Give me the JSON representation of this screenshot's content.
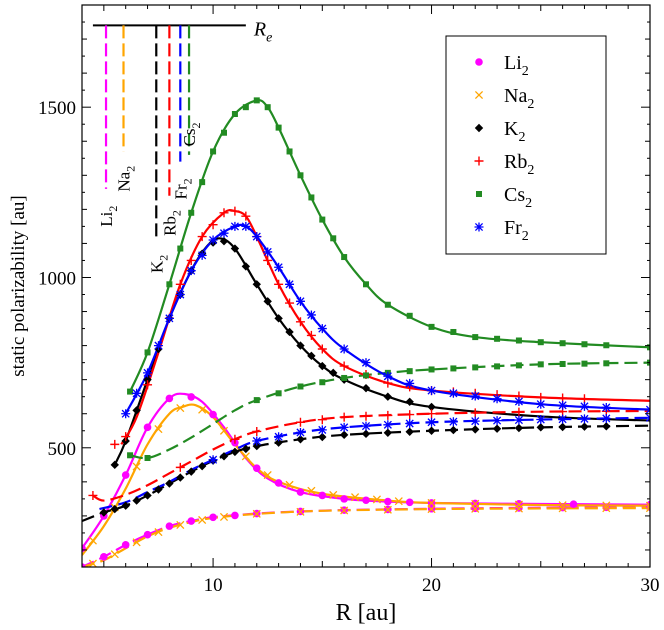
{
  "chart_data": {
    "type": "line",
    "xlabel": "R [au]",
    "ylabel": "static polarizability [au]",
    "xlim": [
      4,
      30
    ],
    "ylim": [
      150,
      1800
    ],
    "xticks": [
      10,
      20,
      30
    ],
    "yticks": [
      500,
      1000,
      1500
    ],
    "re_line": {
      "y": 1740,
      "x_start": 4.5,
      "x_end": 11.5,
      "label_main": "R",
      "label_sub": "e"
    },
    "series": [
      {
        "name": "Li2",
        "label_main": "Li",
        "label_sub": "2",
        "color": "#ff00ff",
        "marker": "circle",
        "re": 5.1,
        "re_bottom": 1260,
        "annot": {
          "x": 5.1,
          "y": 1180,
          "main": "Li",
          "sub": "2"
        },
        "parallel": [
          [
            4,
            205
          ],
          [
            5,
            300
          ],
          [
            6,
            420
          ],
          [
            7,
            560
          ],
          [
            8,
            645
          ],
          [
            8.7,
            658
          ],
          [
            9.5,
            635
          ],
          [
            10.5,
            560
          ],
          [
            11.5,
            470
          ],
          [
            12.5,
            410
          ],
          [
            14,
            370
          ],
          [
            16,
            350
          ],
          [
            18,
            342
          ],
          [
            20,
            338
          ],
          [
            25,
            335
          ],
          [
            30,
            333
          ]
        ],
        "perpendicular": [
          [
            4,
            150
          ],
          [
            5,
            180
          ],
          [
            6,
            215
          ],
          [
            7,
            245
          ],
          [
            8,
            270
          ],
          [
            9,
            285
          ],
          [
            10,
            296
          ],
          [
            12,
            307
          ],
          [
            14,
            313
          ],
          [
            16,
            317
          ],
          [
            20,
            321
          ],
          [
            25,
            324
          ],
          [
            30,
            326
          ]
        ],
        "markers_parallel": [
          4,
          5,
          6,
          7,
          8,
          9,
          10,
          11,
          12,
          13,
          14,
          15,
          16,
          17,
          18,
          19,
          20,
          22,
          24,
          26.5,
          30
        ],
        "markers_perpendicular": [
          4,
          5,
          6,
          7,
          8,
          9,
          10,
          11,
          12,
          14,
          16,
          18,
          20,
          22,
          24,
          26,
          28,
          30
        ]
      },
      {
        "name": "Na2",
        "label_main": "Na",
        "label_sub": "2",
        "color": "#ffa500",
        "marker": "x",
        "re": 5.9,
        "re_bottom": 1370,
        "annot": {
          "x": 5.9,
          "y": 1290,
          "main": "Na",
          "sub": "2"
        },
        "parallel": [
          [
            4,
            185
          ],
          [
            5,
            270
          ],
          [
            6,
            380
          ],
          [
            7,
            510
          ],
          [
            8,
            600
          ],
          [
            8.6,
            620
          ],
          [
            9.2,
            625
          ],
          [
            10,
            590
          ],
          [
            11,
            510
          ],
          [
            12,
            440
          ],
          [
            13,
            400
          ],
          [
            15,
            365
          ],
          [
            18,
            345
          ],
          [
            20,
            338
          ],
          [
            25,
            332
          ],
          [
            30,
            330
          ]
        ],
        "perpendicular": [
          [
            4,
            150
          ],
          [
            5,
            170
          ],
          [
            6,
            205
          ],
          [
            7,
            240
          ],
          [
            8,
            265
          ],
          [
            9,
            282
          ],
          [
            10,
            294
          ],
          [
            12,
            306
          ],
          [
            15,
            315
          ],
          [
            20,
            320
          ],
          [
            25,
            322
          ],
          [
            30,
            323
          ]
        ],
        "markers_parallel": [
          4.5,
          5.5,
          6.5,
          7.5,
          8.5,
          9.5,
          10.5,
          11.5,
          12.5,
          13.5,
          14.5,
          15.5,
          16.5,
          17.5,
          18.5,
          20,
          22,
          24,
          26,
          28,
          30
        ],
        "markers_perpendicular": [
          4.5,
          5.5,
          6.5,
          7.5,
          8.5,
          9.5,
          10.5,
          12,
          14,
          16,
          18,
          20,
          22,
          24,
          26,
          28,
          30
        ]
      },
      {
        "name": "K2",
        "label_main": "K",
        "label_sub": "2",
        "color": "#000000",
        "marker": "diamond",
        "re": 7.4,
        "re_bottom": 1120,
        "annot": {
          "x": 7.4,
          "y": 1040,
          "main": "K",
          "sub": "2"
        },
        "parallel": [
          [
            5.5,
            450
          ],
          [
            6,
            520
          ],
          [
            7,
            700
          ],
          [
            8,
            880
          ],
          [
            9,
            1020
          ],
          [
            9.7,
            1090
          ],
          [
            10.3,
            1115
          ],
          [
            11,
            1085
          ],
          [
            12,
            980
          ],
          [
            13,
            880
          ],
          [
            14,
            800
          ],
          [
            15,
            740
          ],
          [
            16,
            700
          ],
          [
            18,
            650
          ],
          [
            20,
            620
          ],
          [
            25,
            592
          ],
          [
            30,
            580
          ]
        ],
        "perpendicular": [
          [
            4,
            285
          ],
          [
            5,
            310
          ],
          [
            6,
            330
          ],
          [
            7,
            360
          ],
          [
            8,
            395
          ],
          [
            9,
            430
          ],
          [
            10,
            462
          ],
          [
            11,
            488
          ],
          [
            12,
            505
          ],
          [
            14,
            525
          ],
          [
            16,
            538
          ],
          [
            20,
            550
          ],
          [
            25,
            560
          ],
          [
            30,
            565
          ]
        ],
        "markers_parallel": [
          5.5,
          6,
          6.5,
          7,
          7.5,
          8,
          8.5,
          9,
          9.5,
          10,
          10.5,
          11,
          11.5,
          12,
          12.5,
          13,
          13.5,
          14,
          14.5,
          15,
          15.5,
          16,
          17,
          18,
          19,
          20
        ],
        "markers_perpendicular": [
          5,
          5.5,
          6,
          6.5,
          7,
          7.5,
          8,
          8.5,
          9,
          9.5,
          10,
          10.5,
          11,
          11.5,
          12,
          13,
          14,
          15,
          16,
          17,
          18,
          19,
          20,
          21,
          22,
          23,
          24,
          25,
          26,
          27,
          28
        ]
      },
      {
        "name": "Rb2",
        "label_main": "Rb",
        "label_sub": "2",
        "color": "#ff0000",
        "marker": "plus",
        "re": 8.0,
        "re_bottom": 1240,
        "annot": {
          "x": 8.0,
          "y": 1160,
          "main": "Rb",
          "sub": "2"
        },
        "parallel": [
          [
            5.8,
            510
          ],
          [
            6.5,
            590
          ],
          [
            7.5,
            780
          ],
          [
            8.5,
            980
          ],
          [
            9.5,
            1120
          ],
          [
            10.5,
            1190
          ],
          [
            11,
            1195
          ],
          [
            11.5,
            1180
          ],
          [
            12,
            1120
          ],
          [
            13,
            980
          ],
          [
            14,
            870
          ],
          [
            15,
            790
          ],
          [
            16,
            740
          ],
          [
            18,
            690
          ],
          [
            20,
            668
          ],
          [
            25,
            648
          ],
          [
            30,
            638
          ]
        ],
        "perpendicular": [
          [
            4.5,
            360
          ],
          [
            5,
            345
          ],
          [
            6,
            362
          ],
          [
            7,
            390
          ],
          [
            8,
            425
          ],
          [
            9,
            460
          ],
          [
            10,
            495
          ],
          [
            11,
            525
          ],
          [
            12,
            548
          ],
          [
            14,
            575
          ],
          [
            16,
            590
          ],
          [
            20,
            600
          ],
          [
            25,
            606
          ],
          [
            30,
            608
          ]
        ],
        "markers_parallel": [
          5.5,
          6,
          7,
          8,
          8.5,
          9,
          9.5,
          10,
          10.5,
          11,
          11.5,
          12,
          12.5,
          13,
          13.5,
          14,
          14.5,
          15,
          16,
          17,
          18,
          19,
          20,
          21,
          22,
          23,
          24,
          25,
          26,
          27
        ],
        "markers_perpendicular": [
          4.5,
          8.5,
          11,
          12,
          14,
          15,
          16,
          17,
          18,
          19,
          20,
          22,
          24,
          26,
          28
        ]
      },
      {
        "name": "Cs2",
        "label_main": "Cs",
        "label_sub": "2",
        "color": "#228b22",
        "marker": "square",
        "re": 8.9,
        "re_bottom": 1360,
        "annot": {
          "x": 8.9,
          "y": 1420,
          "main": "Cs",
          "sub": "2"
        },
        "parallel": [
          [
            6.2,
            665
          ],
          [
            7,
            780
          ],
          [
            8,
            980
          ],
          [
            9,
            1190
          ],
          [
            10,
            1370
          ],
          [
            11,
            1480
          ],
          [
            12,
            1520
          ],
          [
            12.5,
            1500
          ],
          [
            13,
            1440
          ],
          [
            14,
            1300
          ],
          [
            15,
            1170
          ],
          [
            16,
            1060
          ],
          [
            17,
            980
          ],
          [
            18,
            920
          ],
          [
            20,
            855
          ],
          [
            22,
            825
          ],
          [
            25,
            810
          ],
          [
            30,
            795
          ]
        ],
        "perpendicular": [
          [
            6.2,
            478
          ],
          [
            7,
            470
          ],
          [
            8,
            495
          ],
          [
            9,
            530
          ],
          [
            10,
            570
          ],
          [
            11,
            610
          ],
          [
            12,
            640
          ],
          [
            14,
            680
          ],
          [
            16,
            705
          ],
          [
            18,
            720
          ],
          [
            20,
            730
          ],
          [
            25,
            745
          ],
          [
            30,
            750
          ]
        ],
        "markers_parallel": [
          6.2,
          7,
          8,
          8.5,
          9,
          9.5,
          10,
          10.5,
          11,
          11.5,
          12,
          12.5,
          13,
          13.5,
          14,
          14.5,
          15,
          15.5,
          16,
          17,
          18,
          19,
          20,
          21,
          22,
          23,
          24,
          25,
          26,
          27,
          28,
          30
        ],
        "markers_perpendicular": [
          6.2,
          7,
          12,
          13,
          14,
          15,
          16,
          17,
          18,
          19,
          20,
          21,
          22,
          23,
          24,
          25,
          26,
          27,
          28,
          30
        ]
      },
      {
        "name": "Fr2",
        "label_main": "Fr",
        "label_sub": "2",
        "color": "#0000ff",
        "marker": "asterisk",
        "re": 8.5,
        "re_bottom": 1340,
        "annot": {
          "x": 8.5,
          "y": 1260,
          "main": "Fr",
          "sub": "2"
        },
        "parallel": [
          [
            6,
            600
          ],
          [
            7,
            720
          ],
          [
            8,
            880
          ],
          [
            9,
            1020
          ],
          [
            10,
            1110
          ],
          [
            11,
            1150
          ],
          [
            11.5,
            1150
          ],
          [
            12,
            1120
          ],
          [
            13,
            1030
          ],
          [
            14,
            930
          ],
          [
            15,
            850
          ],
          [
            16,
            790
          ],
          [
            18,
            710
          ],
          [
            20,
            668
          ],
          [
            25,
            628
          ],
          [
            30,
            612
          ]
        ],
        "perpendicular": [
          [
            4.8,
            320
          ],
          [
            6,
            340
          ],
          [
            7,
            370
          ],
          [
            8,
            400
          ],
          [
            9,
            435
          ],
          [
            10,
            465
          ],
          [
            11,
            495
          ],
          [
            12,
            520
          ],
          [
            14,
            545
          ],
          [
            16,
            560
          ],
          [
            20,
            575
          ],
          [
            25,
            583
          ],
          [
            30,
            588
          ]
        ],
        "markers_parallel": [
          6,
          6.5,
          7,
          7.5,
          8,
          8.5,
          9,
          9.5,
          10,
          10.5,
          11,
          11.5,
          12,
          12.5,
          13,
          13.5,
          14,
          14.5,
          15,
          16,
          17,
          18,
          19,
          20,
          21,
          22,
          23,
          24,
          25,
          26,
          27,
          28,
          30
        ],
        "markers_perpendicular": [
          10,
          12,
          13,
          14,
          15,
          16,
          17,
          18,
          19,
          20,
          21,
          22,
          23,
          24,
          25,
          26,
          27,
          28,
          30
        ]
      }
    ]
  }
}
